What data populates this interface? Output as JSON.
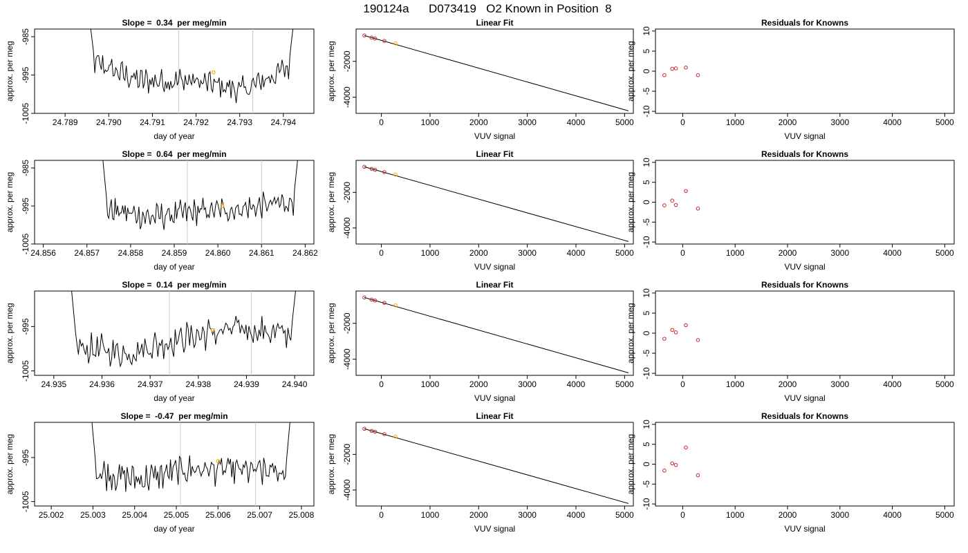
{
  "title": "190124a      D073419   O2 Known in Position  8",
  "colors": {
    "line": "#000000",
    "vline": "#c8c8c8",
    "known_point": "#c0282a",
    "unknown_point": "#ffa500"
  },
  "chart_data": [
    {
      "type": "line",
      "row": 1,
      "title": "Slope =  0.34  per meg/min",
      "xlabel": "day of year",
      "ylabel": "approx. per meg",
      "xlim": [
        24.7883,
        24.7947
      ],
      "ylim": [
        -1005,
        -983
      ],
      "xticks": [
        "24.789",
        "24.790",
        "24.791",
        "24.792",
        "24.793",
        "24.794"
      ],
      "yticks": [
        "-1005",
        "-995",
        "-985"
      ],
      "vlines": [
        24.7916,
        24.7933
      ],
      "marker": [
        24.7924,
        -994.3
      ],
      "xrange": [
        24.7895,
        24.7943
      ],
      "yshape": [
        -991,
        -996.5,
        -996.5,
        -999,
        -992
      ]
    },
    {
      "type": "scatter",
      "row": 1,
      "title": "Linear Fit",
      "xlabel": "VUV signal",
      "ylabel": "approx. per meg",
      "xlim": [
        -520,
        5180
      ],
      "ylim": [
        -4900,
        -200
      ],
      "xticks": [
        "0",
        "1000",
        "2000",
        "3000",
        "4000",
        "5000"
      ],
      "yticks": [
        "-2000",
        "-4000"
      ],
      "points_x": [
        -350,
        -200,
        -130,
        60,
        290
      ],
      "points_y": [
        -560,
        -680,
        -730,
        -860,
        -1000
      ],
      "fit_x": [
        -350,
        5080
      ],
      "fit_y": [
        -560,
        -4760
      ]
    },
    {
      "type": "scatter",
      "row": 1,
      "title": "Residuals for Knowns",
      "xlabel": "VUV signal",
      "ylabel": "approx. per meg",
      "xlim": [
        -520,
        5180
      ],
      "ylim": [
        -10.5,
        10.5
      ],
      "xticks": [
        "0",
        "1000",
        "2000",
        "3000",
        "4000",
        "5000"
      ],
      "yticks": [
        "-10",
        "-5",
        "0",
        "5",
        "10"
      ],
      "points_x": [
        -350,
        -200,
        -130,
        60,
        290
      ],
      "points_y": [
        -1.0,
        0.6,
        0.7,
        0.9,
        -1.0
      ]
    },
    {
      "type": "line",
      "row": 2,
      "title": "Slope =  0.64  per meg/min",
      "xlabel": "day of year",
      "ylabel": "approx. per meg",
      "xlim": [
        24.8558,
        24.8622
      ],
      "ylim": [
        -1005,
        -983
      ],
      "xticks": [
        "24.856",
        "24.857",
        "24.858",
        "24.859",
        "24.860",
        "24.861",
        "24.862"
      ],
      "yticks": [
        "-1005",
        "-995",
        "-985"
      ],
      "vlines": [
        24.8593,
        24.861
      ],
      "marker": [
        24.8601,
        -995.0
      ],
      "xrange": [
        24.8573,
        24.8619
      ],
      "yshape": [
        -995.5,
        -998,
        -996.5,
        -995.5,
        -993.5
      ]
    },
    {
      "type": "scatter",
      "row": 2,
      "title": "Linear Fit",
      "xlabel": "VUV signal",
      "ylabel": "approx. per meg",
      "xlim": [
        -520,
        5180
      ],
      "ylim": [
        -4900,
        -200
      ],
      "xticks": [
        "0",
        "1000",
        "2000",
        "3000",
        "4000",
        "5000"
      ],
      "yticks": [
        "-2000",
        "-4000"
      ],
      "points_x": [
        -350,
        -200,
        -130,
        60,
        290
      ],
      "points_y": [
        -560,
        -680,
        -730,
        -860,
        -1000
      ],
      "fit_x": [
        -350,
        5080
      ],
      "fit_y": [
        -560,
        -4760
      ]
    },
    {
      "type": "scatter",
      "row": 2,
      "title": "Residuals for Knowns",
      "xlabel": "VUV signal",
      "ylabel": "approx. per meg",
      "xlim": [
        -520,
        5180
      ],
      "ylim": [
        -10.5,
        10.5
      ],
      "xticks": [
        "0",
        "1000",
        "2000",
        "3000",
        "4000",
        "5000"
      ],
      "yticks": [
        "-10",
        "-5",
        "0",
        "5",
        "10"
      ],
      "points_x": [
        -350,
        -200,
        -130,
        60,
        290
      ],
      "points_y": [
        -0.8,
        0.4,
        -0.7,
        2.8,
        -1.6
      ]
    },
    {
      "type": "line",
      "row": 3,
      "title": "Slope =  0.14  per meg/min",
      "xlabel": "day of year",
      "ylabel": "approx. per meg",
      "xlim": [
        24.9346,
        24.9404
      ],
      "ylim": [
        -1006,
        -987
      ],
      "xticks": [
        "24.935",
        "24.936",
        "24.937",
        "24.938",
        "24.939",
        "24.940"
      ],
      "yticks": [
        "-1005",
        "-995"
      ],
      "vlines": [
        24.9374,
        24.9391
      ],
      "marker": [
        24.9383,
        -995.8
      ],
      "xrange": [
        24.9353,
        24.9401
      ],
      "yshape": [
        -999.5,
        -1001,
        -997.5,
        -995.5,
        -997
      ]
    },
    {
      "type": "scatter",
      "row": 3,
      "title": "Linear Fit",
      "xlabel": "VUV signal",
      "ylabel": "approx. per meg",
      "xlim": [
        -520,
        5180
      ],
      "ylim": [
        -4900,
        -200
      ],
      "xticks": [
        "0",
        "1000",
        "2000",
        "3000",
        "4000",
        "5000"
      ],
      "yticks": [
        "-2000",
        "-4000"
      ],
      "points_x": [
        -350,
        -200,
        -130,
        60,
        290
      ],
      "points_y": [
        -560,
        -680,
        -730,
        -860,
        -1000
      ],
      "fit_x": [
        -350,
        5080
      ],
      "fit_y": [
        -560,
        -4760
      ]
    },
    {
      "type": "scatter",
      "row": 3,
      "title": "Residuals for Knowns",
      "xlabel": "VUV signal",
      "ylabel": "approx. per meg",
      "xlim": [
        -520,
        5180
      ],
      "ylim": [
        -10.5,
        10.5
      ],
      "xticks": [
        "0",
        "1000",
        "2000",
        "3000",
        "4000",
        "5000"
      ],
      "yticks": [
        "-10",
        "-5",
        "0",
        "5",
        "10"
      ],
      "points_x": [
        -350,
        -200,
        -130,
        60,
        290
      ],
      "points_y": [
        -1.4,
        0.8,
        0.2,
        2.0,
        -1.7
      ]
    },
    {
      "type": "line",
      "row": 4,
      "title": "Slope =  -0.47  per meg/min",
      "xlabel": "day of year",
      "ylabel": "approx. per meg",
      "xlim": [
        25.0016,
        25.0083
      ],
      "ylim": [
        -1006,
        -987
      ],
      "xticks": [
        "25.002",
        "25.003",
        "25.004",
        "25.005",
        "25.006",
        "25.007",
        "25.008"
      ],
      "yticks": [
        "-1005",
        "-995"
      ],
      "vlines": [
        25.0051,
        25.0069
      ],
      "marker": [
        25.006,
        -995.8
      ],
      "xrange": [
        25.0029,
        25.0078
      ],
      "yshape": [
        -998,
        -1000,
        -997.5,
        -998,
        -998.5
      ]
    },
    {
      "type": "scatter",
      "row": 4,
      "title": "Linear Fit",
      "xlabel": "VUV signal",
      "ylabel": "approx. per meg",
      "xlim": [
        -520,
        5180
      ],
      "ylim": [
        -4900,
        -200
      ],
      "xticks": [
        "0",
        "1000",
        "2000",
        "3000",
        "4000",
        "5000"
      ],
      "yticks": [
        "-2000",
        "-4000"
      ],
      "points_x": [
        -350,
        -200,
        -130,
        60,
        290
      ],
      "points_y": [
        -560,
        -680,
        -730,
        -860,
        -1000
      ],
      "fit_x": [
        -350,
        5080
      ],
      "fit_y": [
        -560,
        -4760
      ]
    },
    {
      "type": "scatter",
      "row": 4,
      "title": "Residuals for Knowns",
      "xlabel": "VUV signal",
      "ylabel": "approx. per meg",
      "xlim": [
        -520,
        5180
      ],
      "ylim": [
        -10.5,
        10.5
      ],
      "xticks": [
        "0",
        "1000",
        "2000",
        "3000",
        "4000",
        "5000"
      ],
      "yticks": [
        "-10",
        "-5",
        "0",
        "5",
        "10"
      ],
      "points_x": [
        -350,
        -200,
        -130,
        60,
        290
      ],
      "points_y": [
        -1.6,
        0.2,
        -0.2,
        4.2,
        -2.8
      ]
    }
  ]
}
